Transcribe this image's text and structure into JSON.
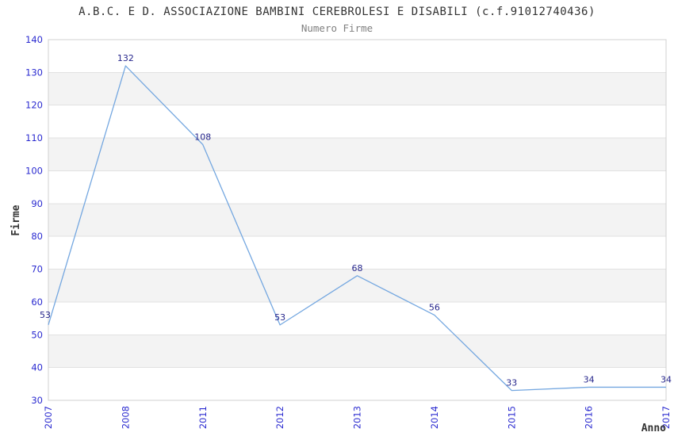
{
  "chart_data": {
    "type": "line",
    "title": "A.B.C. E D. ASSOCIAZIONE BAMBINI CEREBROLESI E DISABILI (c.f.91012740436)",
    "subtitle": "Numero Firme",
    "xlabel": "Anno",
    "ylabel": "Firme",
    "categories": [
      "2007",
      "2008",
      "2011",
      "2012",
      "2013",
      "2014",
      "2015",
      "2016",
      "2017"
    ],
    "series": [
      {
        "name": "Numero Firme",
        "values": [
          53,
          132,
          108,
          53,
          68,
          56,
          33,
          34,
          34
        ]
      }
    ],
    "ylim": [
      30,
      140
    ],
    "ytick_step": 10,
    "grid": "horizontal alternating bands with gridlines at every tick",
    "legend": "none",
    "data_labels_visible": true,
    "colors": {
      "line": "#74a7e0",
      "data_label": "#26268c",
      "tick_label": "#2b2bd0",
      "band": "#f3f3f3",
      "gridline": "#e1e1e1",
      "border": "#d0d0d0",
      "title": "#333333",
      "subtitle": "#808080",
      "axis_label": "#333333"
    }
  }
}
